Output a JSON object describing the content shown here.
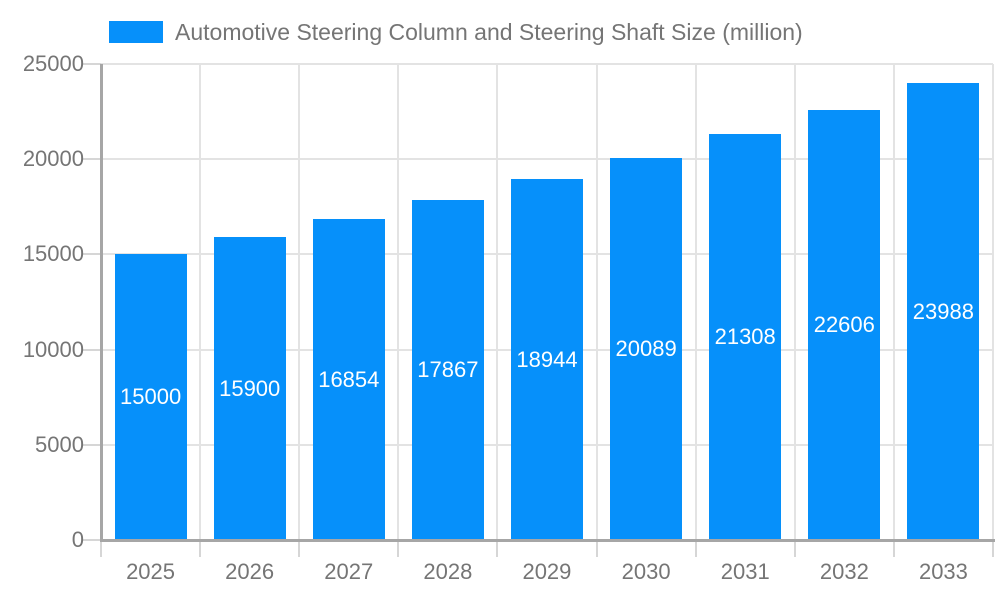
{
  "chart_data": {
    "type": "bar",
    "title": "Automotive Steering Column and Steering Shaft Size (million)",
    "categories": [
      "2025",
      "2026",
      "2027",
      "2028",
      "2029",
      "2030",
      "2031",
      "2032",
      "2033"
    ],
    "values": [
      15000,
      15900,
      16854,
      17867,
      18944,
      20089,
      21308,
      22606,
      23988
    ],
    "yticks": [
      0,
      5000,
      10000,
      15000,
      20000,
      25000
    ],
    "ylim": [
      0,
      25000
    ],
    "xlabel": "",
    "ylabel": "",
    "grid": true,
    "legend_position": "top",
    "colors": {
      "bar": "#0690fa",
      "bar_label": "#ffffff",
      "axis_text": "#757575",
      "grid_line": "#e3e3e3",
      "axis_line": "#a6a6a6",
      "tick_line": "#d6d6d6",
      "background": "#ffffff"
    }
  }
}
